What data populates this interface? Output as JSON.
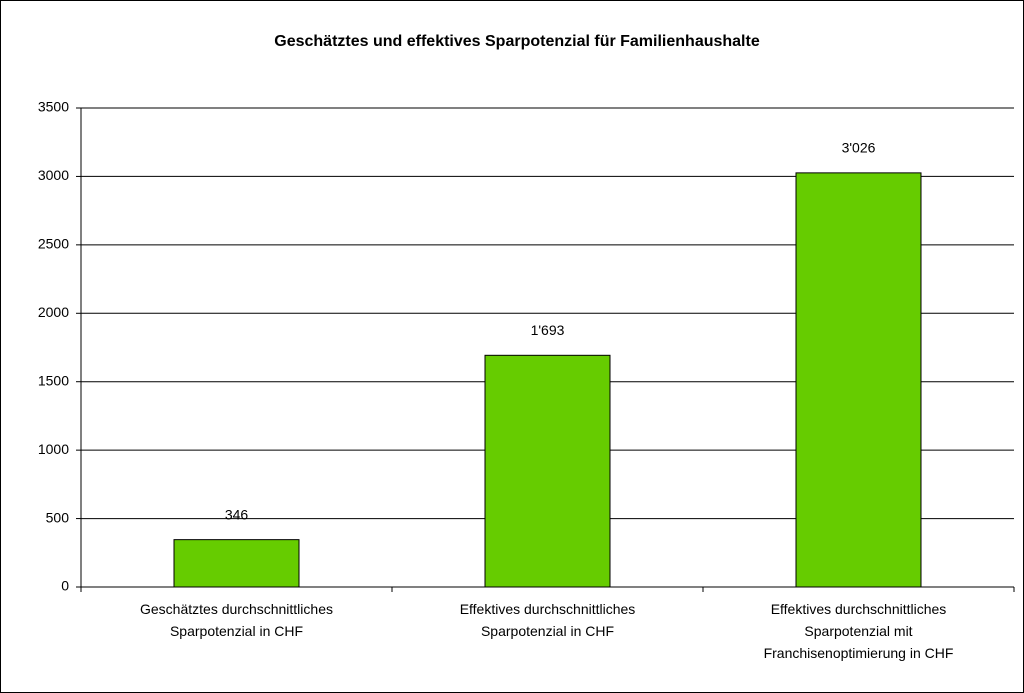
{
  "chart_data": {
    "type": "bar",
    "title": "Geschätztes und effektives Sparpotenzial für Familienhaushalte",
    "categories": [
      "Geschätztes durchschnittliches Sparpotenzial in CHF",
      "Effektives durchschnittliches Sparpotenzial in CHF",
      "Effektives durchschnittliches Sparpotenzial mit Franchisenoptimierung in CHF"
    ],
    "values": [
      346,
      1693,
      3026
    ],
    "value_labels": [
      "346",
      "1'693",
      "3'026"
    ],
    "color": "#66cc00",
    "ylim": [
      0,
      3500
    ],
    "yticks": [
      0,
      500,
      1000,
      1500,
      2000,
      2500,
      3000,
      3500
    ],
    "grid": true
  }
}
